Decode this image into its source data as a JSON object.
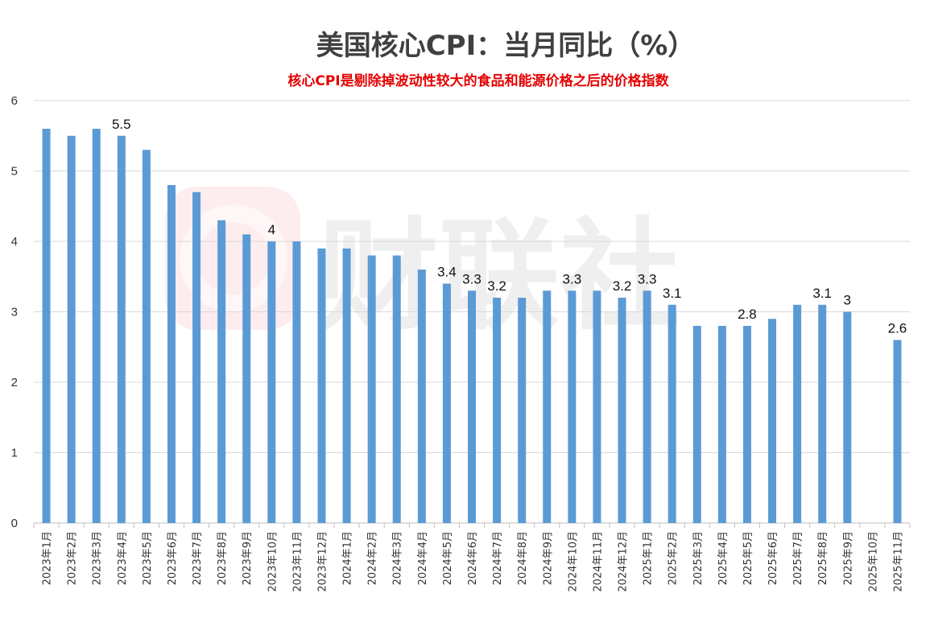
{
  "chart_data": {
    "type": "bar",
    "title": "美国核心CPI：当月同比（%）",
    "subtitle": "核心CPI是剔除掉波动性较大的食品和能源价格之后的价格指数",
    "xlabel": "",
    "ylabel": "",
    "ylim": [
      0,
      6
    ],
    "yticks": [
      "0",
      "1",
      "2",
      "3",
      "4",
      "5",
      "6"
    ],
    "grid": true,
    "legend": "none",
    "bar_color": "#5b9bd5",
    "categories": [
      "2023年1月",
      "2023年2月",
      "2023年3月",
      "2023年4月",
      "2023年5月",
      "2023年6月",
      "2023年7月",
      "2023年8月",
      "2023年9月",
      "2023年10月",
      "2023年11月",
      "2023年12月",
      "2024年1月",
      "2024年2月",
      "2024年3月",
      "2024年4月",
      "2024年5月",
      "2024年6月",
      "2024年7月",
      "2024年8月",
      "2024年9月",
      "2024年10月",
      "2024年11月",
      "2024年12月",
      "2025年1月",
      "2025年2月",
      "2025年3月",
      "2025年4月",
      "2025年5月",
      "2025年6月",
      "2025年7月",
      "2025年8月",
      "2025年9月",
      "2025年10月",
      "2025年11月"
    ],
    "values": [
      5.6,
      5.5,
      5.6,
      5.5,
      5.3,
      4.8,
      4.7,
      4.3,
      4.1,
      4.0,
      4.0,
      3.9,
      3.9,
      3.8,
      3.8,
      3.6,
      3.4,
      3.3,
      3.2,
      3.2,
      3.3,
      3.3,
      3.3,
      3.2,
      3.3,
      3.1,
      2.8,
      2.8,
      2.8,
      2.9,
      3.1,
      3.1,
      3.0,
      null,
      2.6
    ],
    "data_labels": [
      {
        "index": 3,
        "text": "5.5"
      },
      {
        "index": 9,
        "text": "4"
      },
      {
        "index": 16,
        "text": "3.4"
      },
      {
        "index": 17,
        "text": "3.3"
      },
      {
        "index": 18,
        "text": "3.2"
      },
      {
        "index": 21,
        "text": "3.3"
      },
      {
        "index": 23,
        "text": "3.2"
      },
      {
        "index": 24,
        "text": "3.3"
      },
      {
        "index": 25,
        "text": "3.1"
      },
      {
        "index": 28,
        "text": "2.8"
      },
      {
        "index": 31,
        "text": "3.1"
      },
      {
        "index": 32,
        "text": "3"
      },
      {
        "index": 34,
        "text": "2.6"
      }
    ]
  },
  "watermark": {
    "text": "财联社",
    "color": "#e8505b"
  }
}
